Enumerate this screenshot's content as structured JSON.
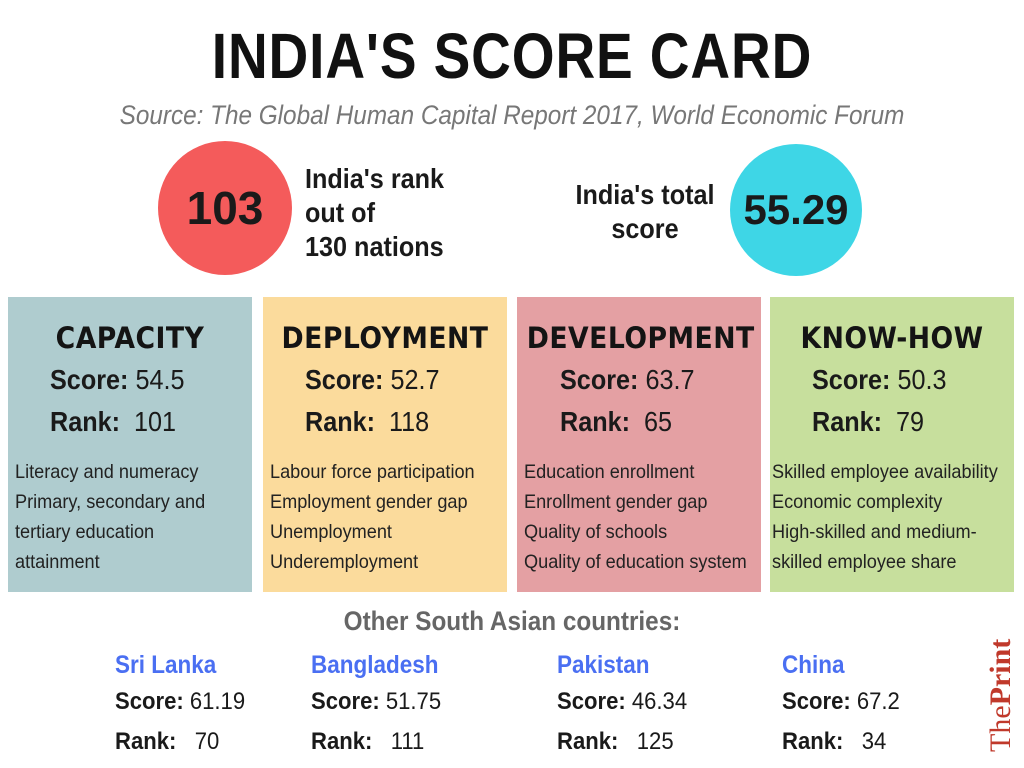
{
  "title": "INDIA'S SCORE CARD",
  "source": "Source: The Global Human Capital Report 2017, World Economic Forum",
  "rank": {
    "value": "103",
    "label_lines": [
      "India's rank",
      "out of",
      "130 nations"
    ],
    "color": "#f45b5b"
  },
  "total_score": {
    "value": "55.29",
    "label_lines": [
      "India's total",
      "score"
    ],
    "color": "#3ed6e6"
  },
  "categories": [
    {
      "name": "CAPACITY",
      "score_label": "Score:",
      "score": "54.5",
      "rank_label": "Rank:",
      "rank": "101",
      "items": [
        "Literacy and numeracy",
        "Primary, secondary and",
        "tertiary education",
        "attainment"
      ],
      "color": "#afcccf"
    },
    {
      "name": "DEPLOYMENT",
      "score_label": "Score:",
      "score": "52.7",
      "rank_label": "Rank:",
      "rank": "118",
      "items": [
        "Labour force participation",
        "Employment gender gap",
        "Unemployment",
        "Underemployment"
      ],
      "color": "#fbdb9c"
    },
    {
      "name": "DEVELOPMENT",
      "score_label": "Score:",
      "score": "63.7",
      "rank_label": "Rank:",
      "rank": "65",
      "items": [
        "Education enrollment",
        "Enrollment gender gap",
        "Quality of schools",
        "Quality of education system"
      ],
      "color": "#e4a0a3"
    },
    {
      "name": "KNOW-HOW",
      "score_label": "Score:",
      "score": "50.3",
      "rank_label": "Rank:",
      "rank": "79",
      "items": [
        "Skilled employee availability",
        "Economic complexity",
        "High-skilled and medium-",
        "skilled employee share"
      ],
      "color": "#c7df9d"
    }
  ],
  "other_title": "Other South Asian countries:",
  "countries": [
    {
      "name": "Sri Lanka",
      "score_label": "Score:",
      "score": "61.19",
      "rank_label": "Rank:",
      "rank": "70"
    },
    {
      "name": "Bangladesh",
      "score_label": "Score:",
      "score": "51.75",
      "rank_label": "Rank:",
      "rank": "111"
    },
    {
      "name": "Pakistan",
      "score_label": "Score:",
      "score": "46.34",
      "rank_label": "Rank:",
      "rank": "125"
    },
    {
      "name": "China",
      "score_label": "Score:",
      "score": "67.2",
      "rank_label": "Rank:",
      "rank": "34"
    }
  ],
  "brand": {
    "part1": "The",
    "part2": "Print",
    "color": "#c0392b"
  },
  "country_name_color": "#4a6ff2"
}
